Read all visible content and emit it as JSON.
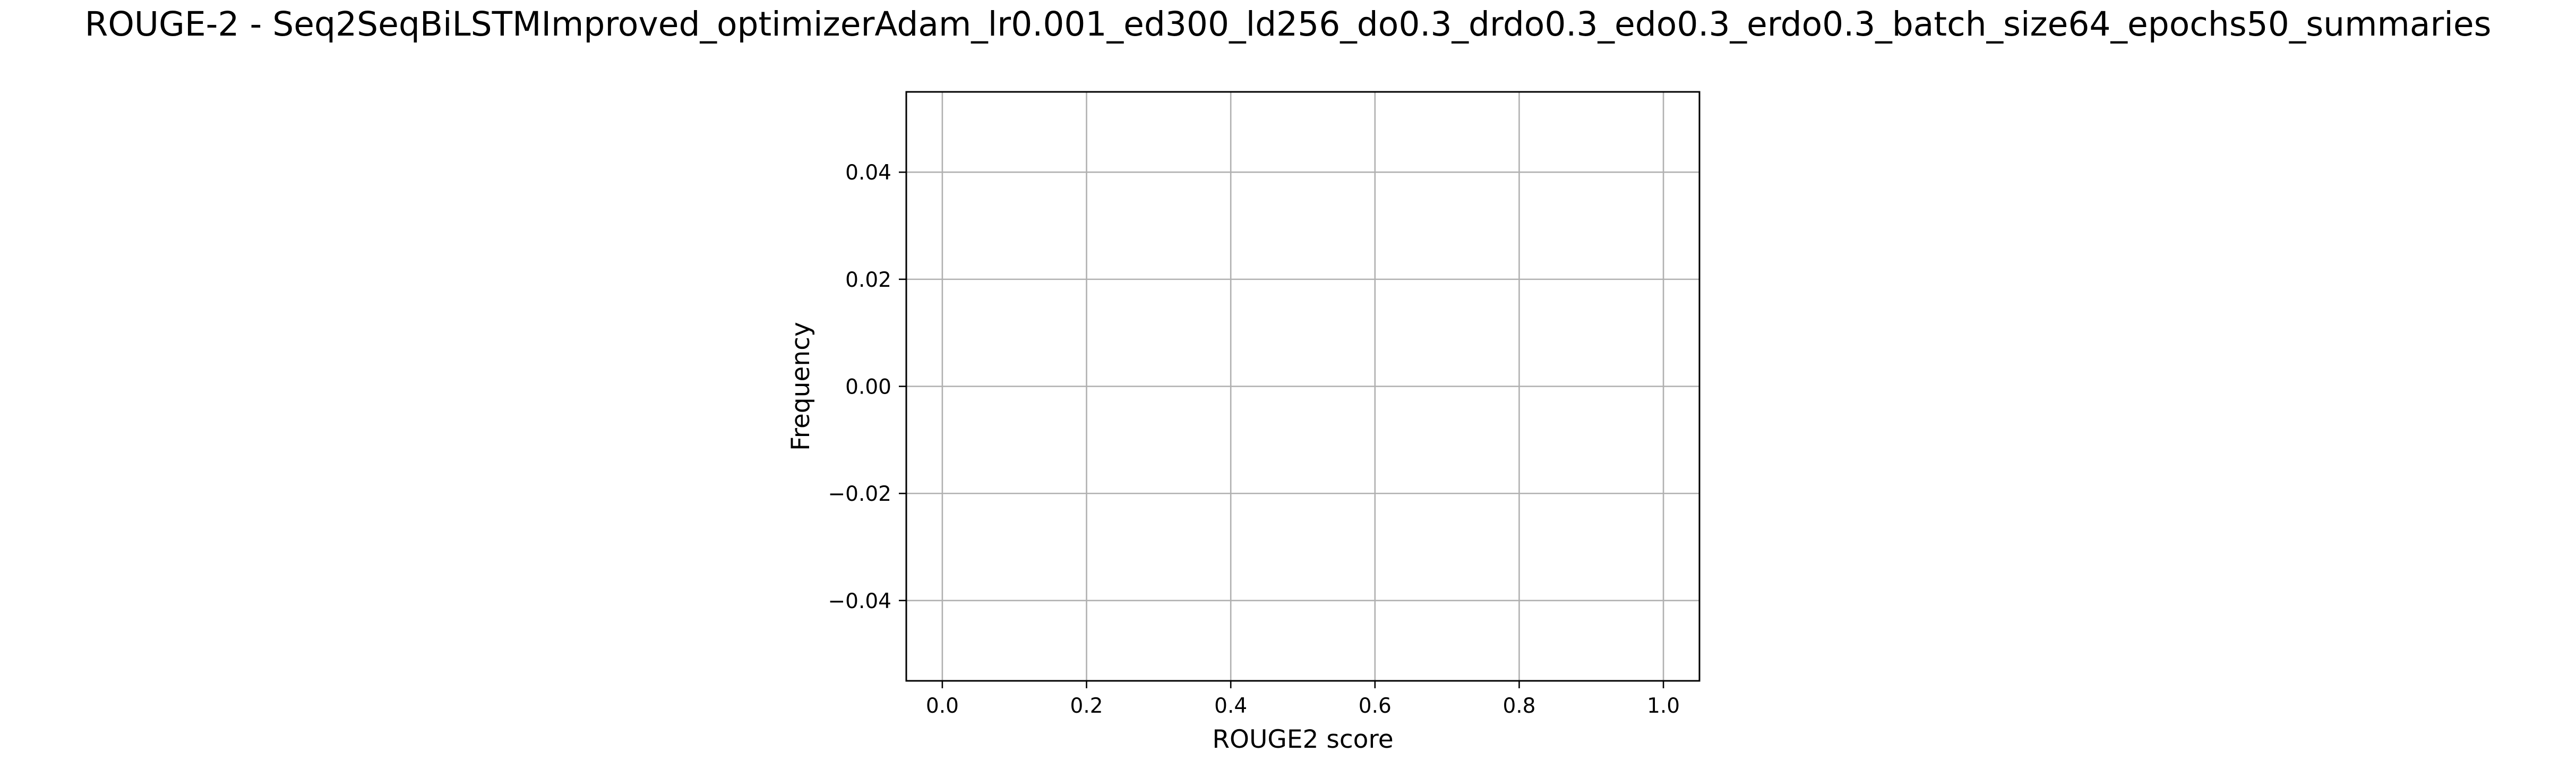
{
  "chart_data": {
    "type": "bar",
    "title": "ROUGE-2 - Seq2SeqBiLSTMImproved_optimizerAdam_lr0.001_ed300_ld256_do0.3_drdo0.3_edo0.3_erdo0.3_batch_size64_epochs50_summaries",
    "xlabel": "ROUGE2 score",
    "ylabel": "Frequency",
    "xlim": [
      -0.05,
      1.05
    ],
    "ylim": [
      -0.055,
      0.055
    ],
    "xticks": [
      0.0,
      0.2,
      0.4,
      0.6,
      0.8,
      1.0
    ],
    "xtick_labels": [
      "0.0",
      "0.2",
      "0.4",
      "0.6",
      "0.8",
      "1.0"
    ],
    "yticks": [
      -0.04,
      -0.02,
      0.0,
      0.02,
      0.04
    ],
    "ytick_labels": [
      "−0.04",
      "−0.02",
      "0.00",
      "0.02",
      "0.04"
    ],
    "grid": true,
    "values": [],
    "colors": {
      "grid": "#b0b0b0",
      "axes": "#000000",
      "background": "#ffffff"
    }
  }
}
